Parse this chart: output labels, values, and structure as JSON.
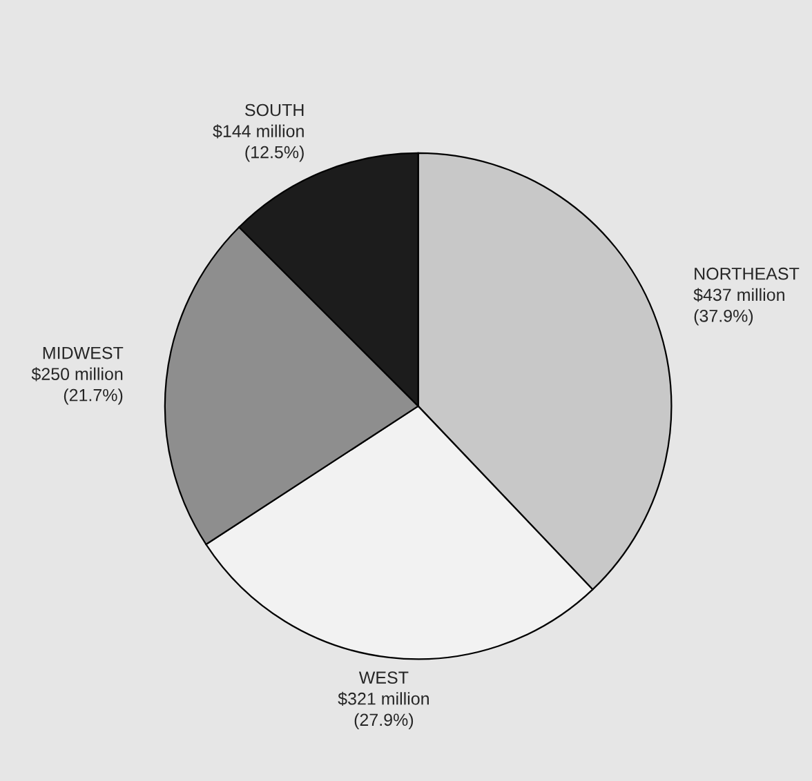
{
  "chart_data": {
    "type": "pie",
    "categories": [
      "NORTHEAST",
      "WEST",
      "MIDWEST",
      "SOUTH"
    ],
    "values": [
      37.9,
      27.9,
      21.7,
      12.5
    ],
    "colors": [
      "#c8c8c8",
      "#f2f2f2",
      "#8e8e8e",
      "#1c1c1c"
    ],
    "value_labels": [
      "$437 million\n(37.9%)",
      "$321 million\n(27.9%)",
      "$250 million\n(21.7%)",
      "$144 million\n(12.5%)"
    ],
    "legend": false
  }
}
